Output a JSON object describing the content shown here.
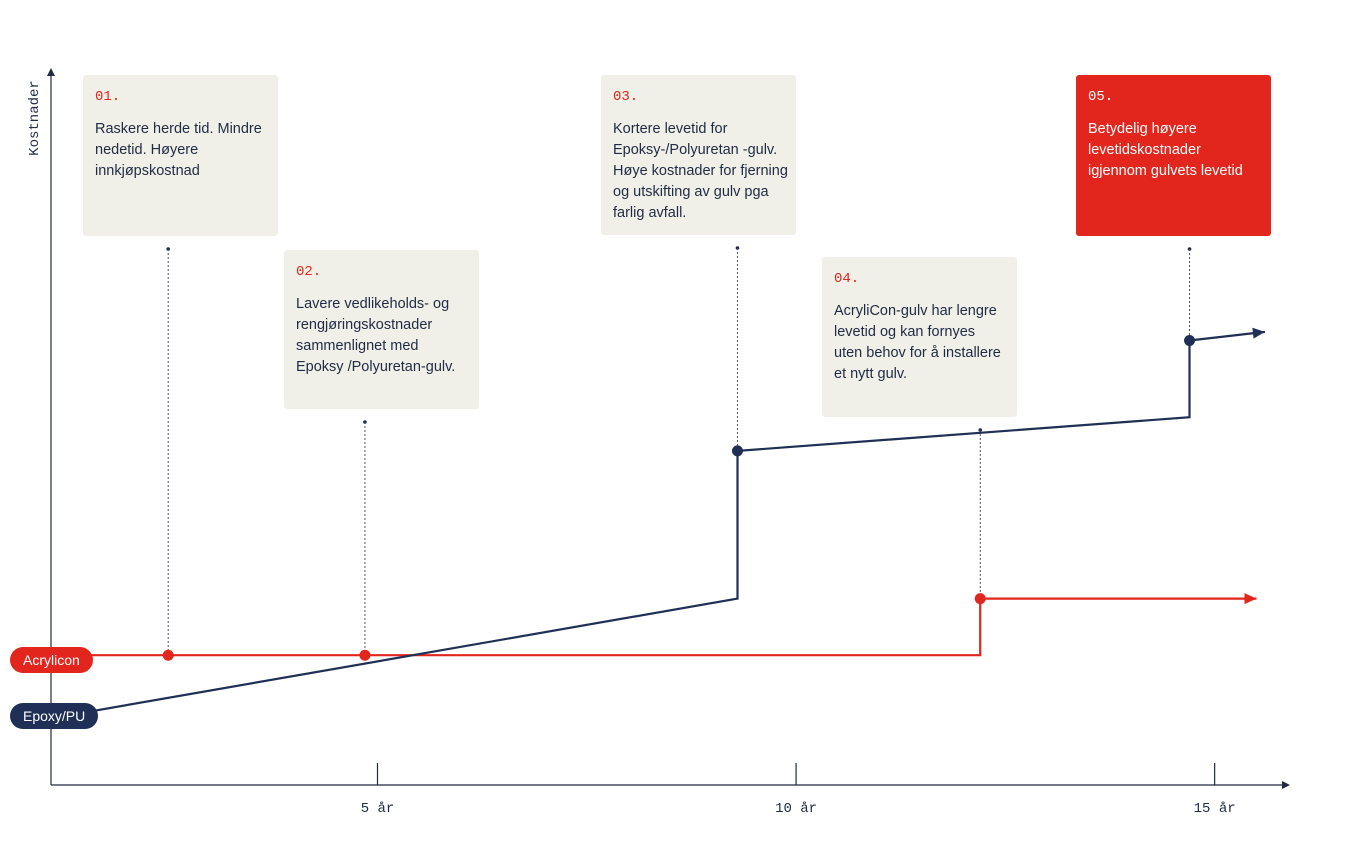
{
  "chart_data": {
    "type": "line",
    "ylabel": "Kostnader",
    "xlabel": "",
    "x_ticks": [
      {
        "value": 5,
        "label": "5 år"
      },
      {
        "value": 10,
        "label": "10 år"
      },
      {
        "value": 15,
        "label": "15 år"
      }
    ],
    "xlim": [
      1.1,
      15.9
    ],
    "ylim": [
      0,
      100
    ],
    "colors": {
      "acrylicon": "#e2261d",
      "epoxy": "#1f2f55",
      "card": "#f1f0e8",
      "axis": "#1f2a44"
    },
    "series": [
      {
        "name": "Acrylicon",
        "color": "#e2261d",
        "points": [
          [
            1.1,
            18.1
          ],
          [
            12.2,
            18.1
          ],
          [
            12.2,
            26.0
          ],
          [
            15.5,
            26.0
          ]
        ],
        "markers": [
          [
            2.5,
            18.1
          ],
          [
            4.85,
            18.1
          ],
          [
            12.2,
            26.0
          ]
        ]
      },
      {
        "name": "Epoxy/PU",
        "color": "#1f2f55",
        "points": [
          [
            1.1,
            9.3
          ],
          [
            9.3,
            26.0
          ],
          [
            9.3,
            46.6
          ],
          [
            14.7,
            51.3
          ],
          [
            14.7,
            62.0
          ],
          [
            15.6,
            63.2
          ]
        ],
        "markers": [
          [
            9.3,
            46.6
          ],
          [
            14.7,
            62.0
          ]
        ]
      }
    ],
    "annotations": [
      {
        "number": "01.",
        "text": "Raskere herde tid. Mindre nedetid. Høyere innkjøpskostnad",
        "x": 2.5,
        "anchor": 18.1,
        "highlight": false
      },
      {
        "number": "02.",
        "text": "Lavere vedlikeholds- og rengjøringskostnader sammenlignet med Epoksy /Polyuretan-gulv.",
        "x": 4.85,
        "anchor": 18.1,
        "highlight": false
      },
      {
        "number": "03.",
        "text": "Kortere levetid for Epoksy-/Polyuretan -gulv. Høye kostnader for fjerning og utskifting av gulv pga farlig avfall.",
        "x": 9.3,
        "anchor": 46.6,
        "highlight": false
      },
      {
        "number": "04.",
        "text": "AcryliCon-gulv har lengre levetid og kan fornyes uten behov for å installere et nytt gulv.",
        "x": 12.2,
        "anchor": 26.0,
        "highlight": false
      },
      {
        "number": "05.",
        "text": "Betydelig høyere levetidskostnader igjennom gulvets levetid",
        "x": 14.7,
        "anchor": 62.0,
        "highlight": true
      }
    ]
  }
}
